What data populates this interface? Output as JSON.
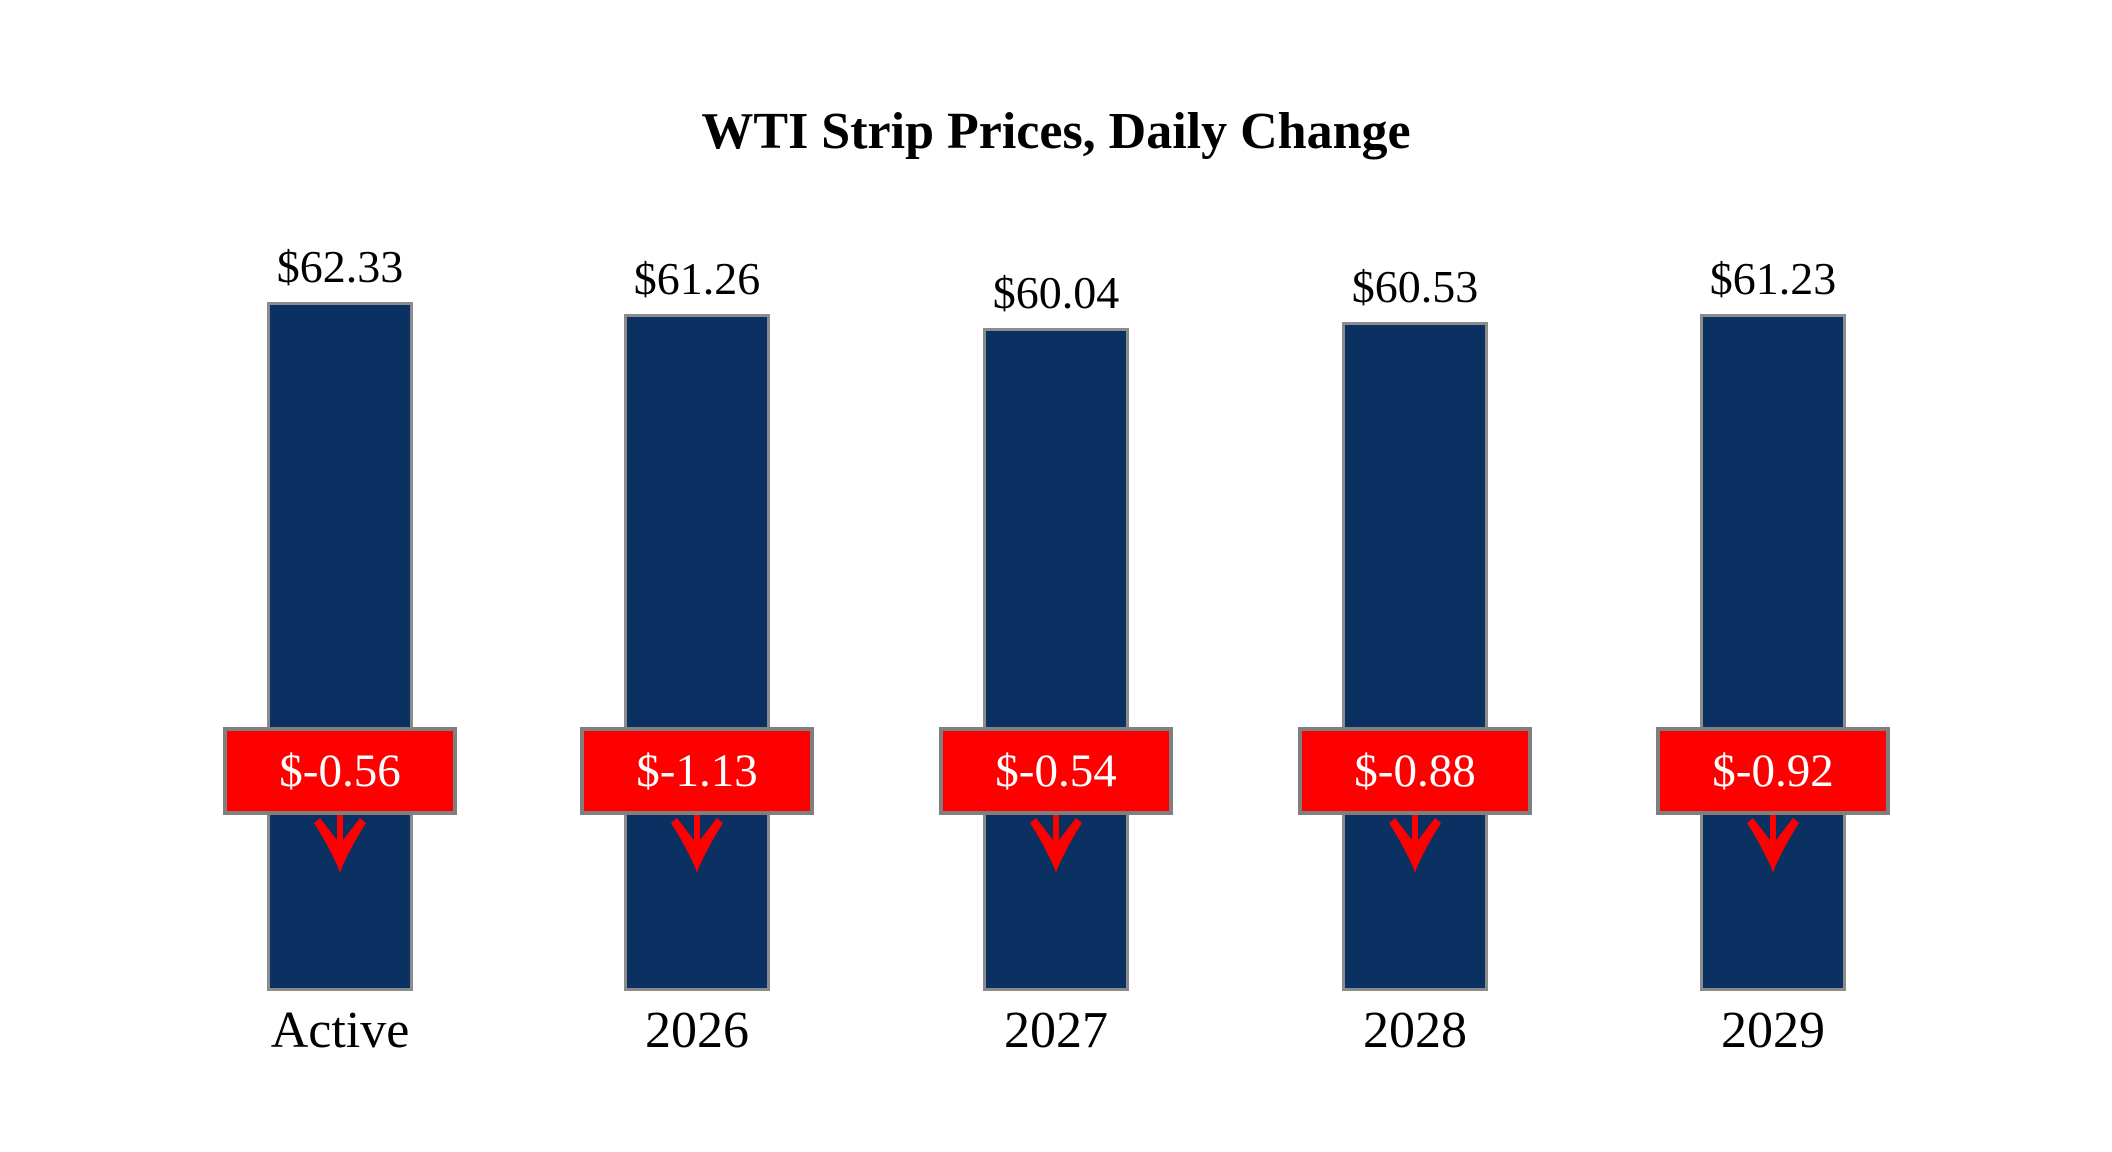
{
  "title": "WTI Strip Prices, Daily Change",
  "colors": {
    "background": "#FFFFFF",
    "bar_fill": "#0A3161",
    "bar_border": "#8C8C8C",
    "change_box_fill": "#FF0000",
    "change_box_border": "#7F7F7F",
    "change_box_text": "#FFFFFF",
    "label_text": "#000000"
  },
  "chart_data": {
    "type": "bar",
    "title": "WTI Strip Prices, Daily Change",
    "categories": [
      "Active",
      "2026",
      "2027",
      "2028",
      "2029"
    ],
    "series": [
      {
        "name": "strip_price",
        "values": [
          62.33,
          61.26,
          60.04,
          60.53,
          61.23
        ]
      },
      {
        "name": "daily_change",
        "values": [
          -0.56,
          -1.13,
          -0.54,
          -0.88,
          -0.92
        ]
      }
    ],
    "points": [
      {
        "category": "Active",
        "price": 62.33,
        "price_label": "$62.33",
        "change": -0.56,
        "change_label": "$-0.56"
      },
      {
        "category": "2026",
        "price": 61.26,
        "price_label": "$61.26",
        "change": -1.13,
        "change_label": "$-1.13"
      },
      {
        "category": "2027",
        "price": 60.04,
        "price_label": "$60.04",
        "change": -0.54,
        "change_label": "$-0.54"
      },
      {
        "category": "2028",
        "price": 60.53,
        "price_label": "$60.53",
        "change": -0.88,
        "change_label": "$-0.88"
      },
      {
        "category": "2029",
        "price": 61.23,
        "price_label": "$61.23",
        "change": -0.92,
        "change_label": "$-0.92"
      }
    ],
    "ylim": [
      0,
      75
    ],
    "grid": false,
    "legend": "none",
    "annotation_style": "red box with white value and red down arrow on each bar"
  }
}
